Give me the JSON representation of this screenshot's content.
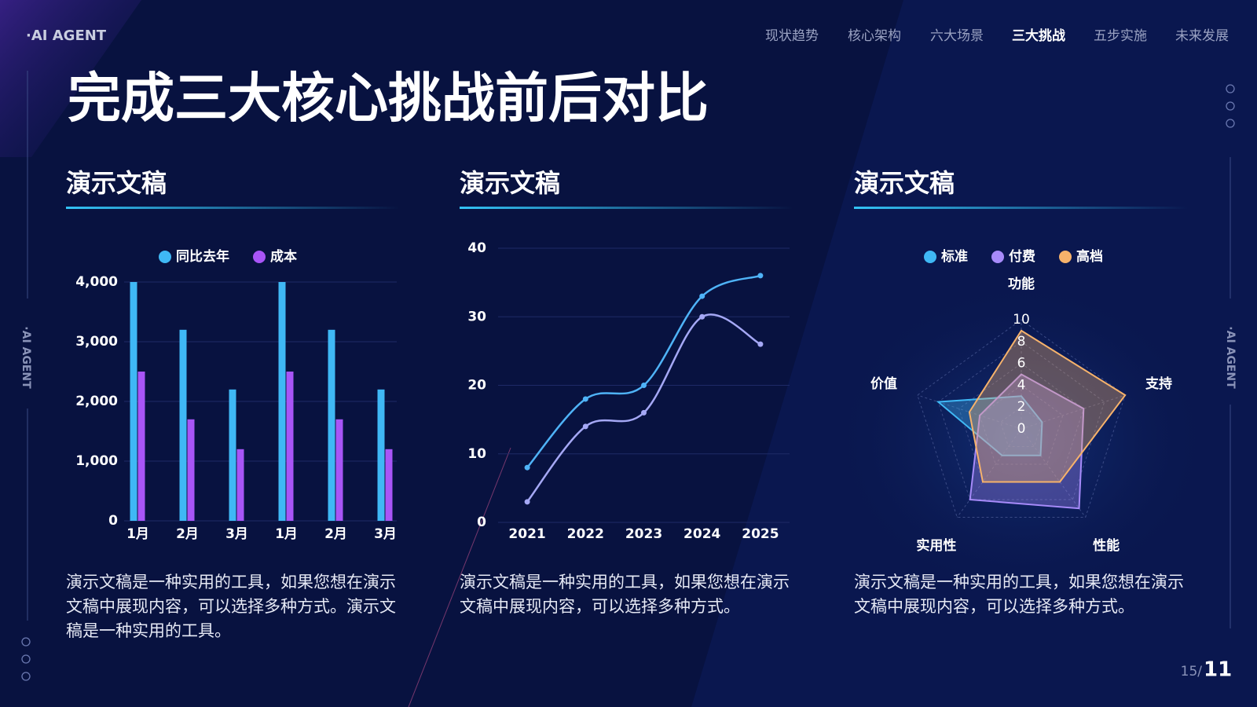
{
  "brand": "·AI AGENT",
  "nav": {
    "items": [
      "现状趋势",
      "核心架构",
      "六大场景",
      "三大挑战",
      "五步实施",
      "未来发展"
    ],
    "active": 3
  },
  "title": "完成三大核心挑战前后对比",
  "panels": [
    {
      "heading": "演示文稿",
      "description": "演示文稿是一种实用的工具，如果您想在演示文稿中展现内容，可以选择多种方式。演示文稿是一种实用的工具。"
    },
    {
      "heading": "演示文稿",
      "description": "演示文稿是一种实用的工具，如果您想在演示文稿中展现内容，可以选择多种方式。"
    },
    {
      "heading": "演示文稿",
      "description": "演示文稿是一种实用的工具，如果您想在演示文稿中展现内容，可以选择多种方式。"
    }
  ],
  "page": {
    "total": "15/",
    "current": "11"
  },
  "chart_data": [
    {
      "type": "bar",
      "categories": [
        "1月",
        "2月",
        "3月",
        "1月",
        "2月",
        "3月"
      ],
      "series": [
        {
          "name": "同比去年",
          "color": "#3fb8f5",
          "values": [
            4000,
            3200,
            2200,
            4000,
            3200,
            2200
          ]
        },
        {
          "name": "成本",
          "color": "#a855f7",
          "values": [
            2500,
            1700,
            1200,
            2500,
            1700,
            1200
          ]
        }
      ],
      "ylim": [
        0,
        4000
      ],
      "yticks": [
        0,
        {
          "value": 1000,
          "label": "1,000"
        },
        {
          "value": 2000,
          "label": "2,000"
        },
        {
          "value": 3000,
          "label": "3,000"
        },
        {
          "value": 4000,
          "label": "4,000"
        }
      ],
      "grid": true
    },
    {
      "type": "line",
      "x": [
        "2021",
        "2022",
        "2023",
        "2024",
        "2025"
      ],
      "series": [
        {
          "color": "#4fb3f7",
          "values": [
            8,
            18,
            20,
            33,
            36
          ]
        },
        {
          "color": "#a5a8f5",
          "values": [
            3,
            14,
            16,
            30,
            26
          ]
        }
      ],
      "ylim": [
        0,
        40
      ],
      "yticks": [
        0,
        10,
        20,
        30,
        40
      ],
      "grid": true
    },
    {
      "type": "radar",
      "categories": [
        "功能",
        "支持",
        "性能",
        "实用性",
        "价值"
      ],
      "series": [
        {
          "name": "标准",
          "color": "#3fb8f5",
          "values": [
            3,
            2,
            3,
            3,
            8
          ]
        },
        {
          "name": "付费",
          "color": "#a78bfa",
          "values": [
            5,
            6,
            9,
            8,
            4
          ]
        },
        {
          "name": "高档",
          "color": "#f6b26b",
          "values": [
            9,
            10,
            6,
            6,
            5
          ]
        }
      ],
      "rlim": [
        0,
        10
      ],
      "rticks": [
        0,
        2,
        4,
        6,
        8,
        10
      ]
    }
  ]
}
